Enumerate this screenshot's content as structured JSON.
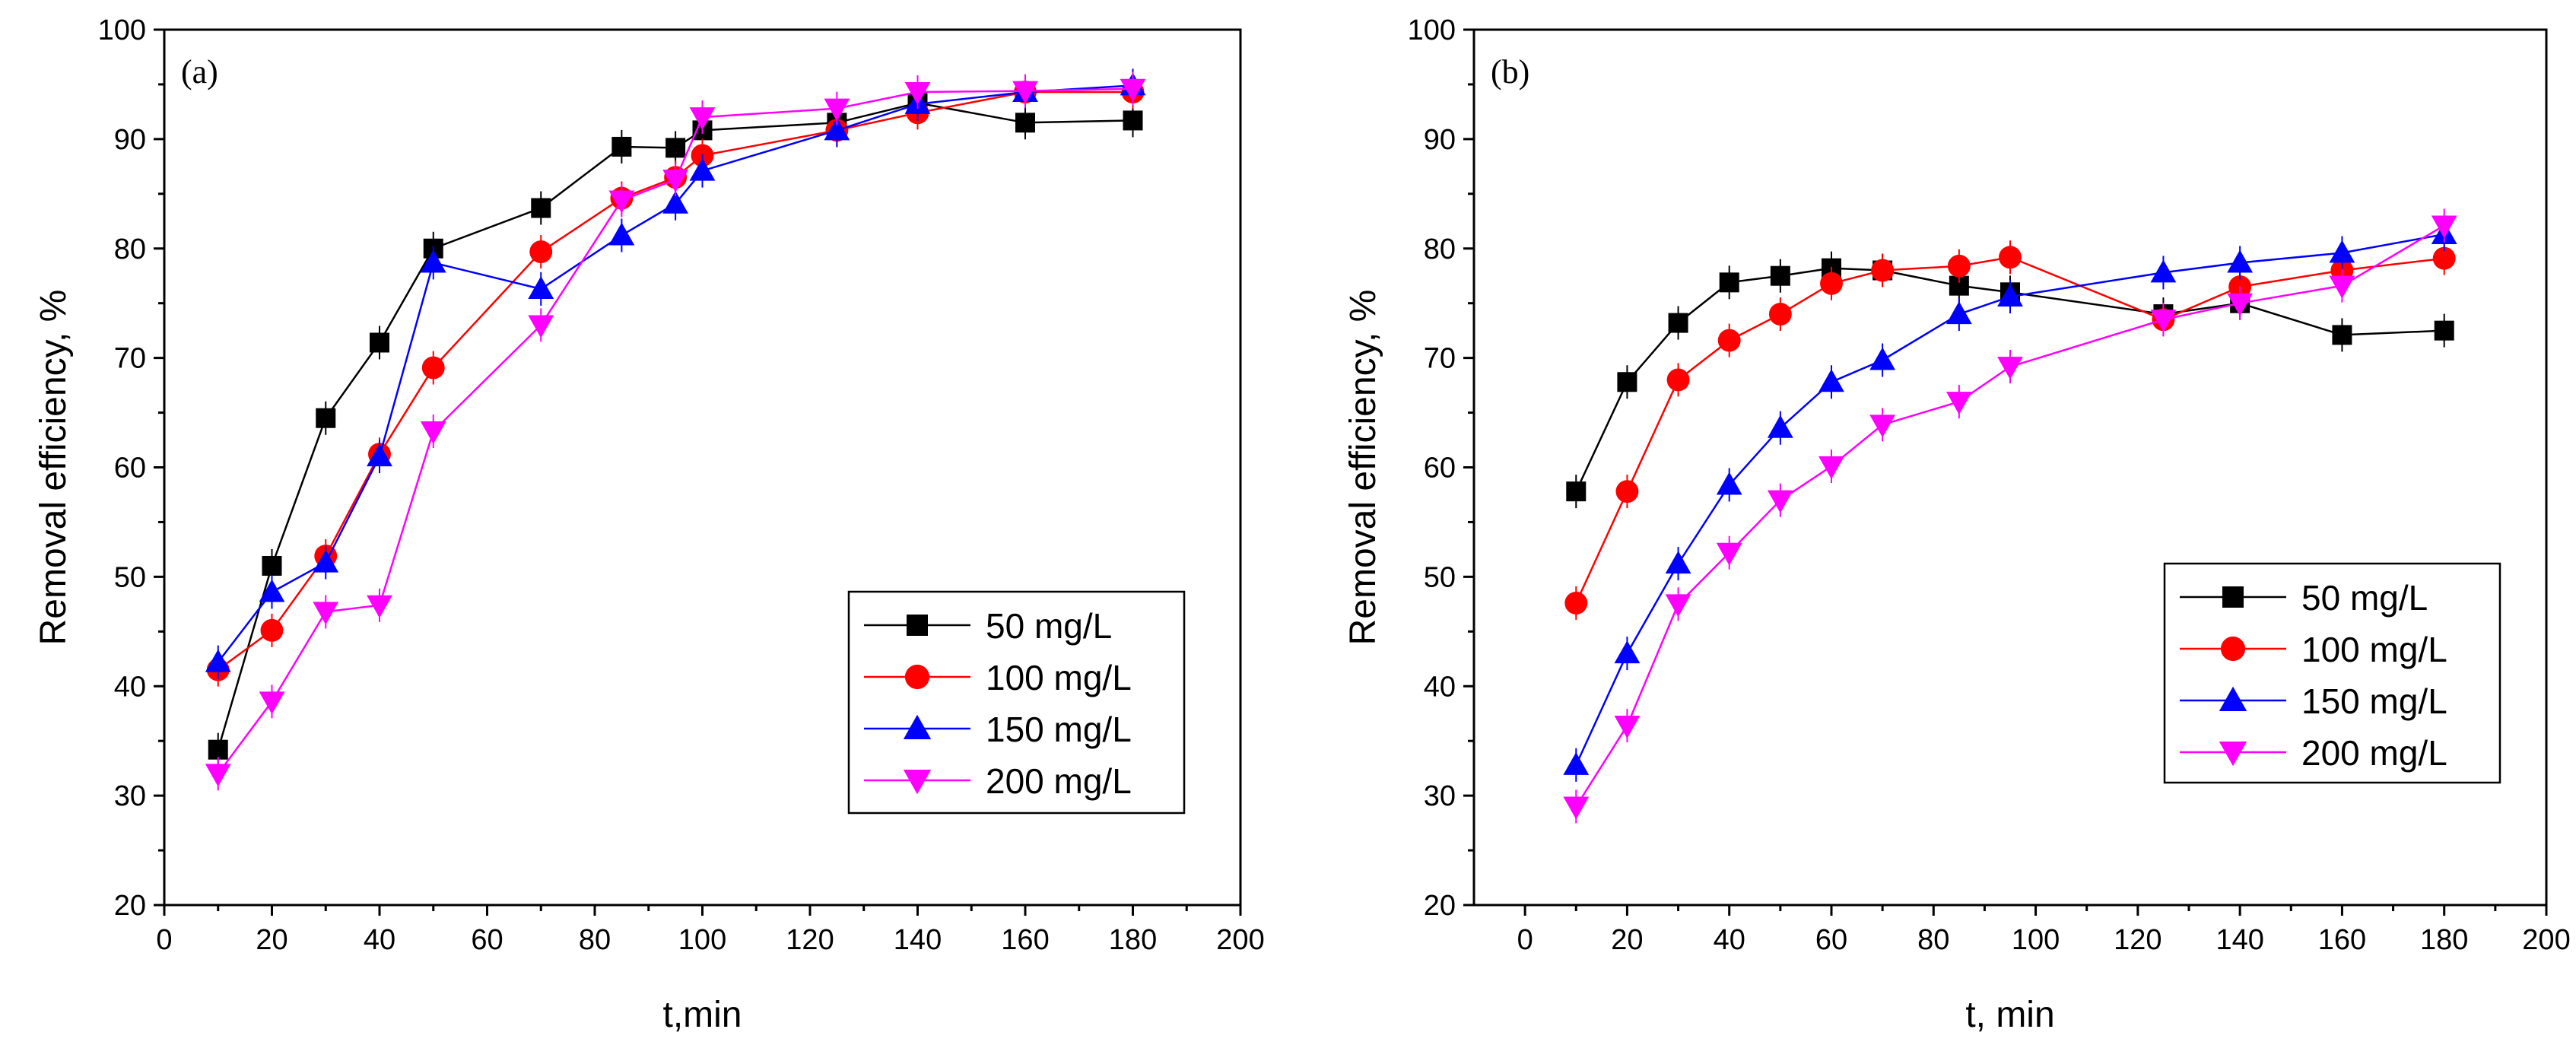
{
  "chart_data": [
    {
      "type": "line",
      "panel_label": "(a)",
      "xlabel": "t,min",
      "ylabel": "Removal efficiency, %",
      "xlim": [
        0,
        200
      ],
      "ylim": [
        20,
        100
      ],
      "xticks": [
        "0",
        "20",
        "40",
        "60",
        "80",
        "100",
        "120",
        "140",
        "160",
        "180",
        "200"
      ],
      "yticks": [
        "20",
        "30",
        "40",
        "50",
        "60",
        "70",
        "80",
        "90",
        "100"
      ],
      "legend_position": "bottom-right",
      "x": [
        10,
        20,
        30,
        40,
        50,
        70,
        85,
        95,
        100,
        125,
        140,
        160,
        180
      ],
      "series": [
        {
          "name": "50 mg/L",
          "color": "#000000",
          "marker": "square",
          "values": [
            34.2,
            51,
            64.5,
            71.4,
            80,
            83.7,
            89.3,
            89.2,
            90.8,
            91.5,
            93.3,
            91.5,
            91.7
          ]
        },
        {
          "name": "100 mg/L",
          "color": "#ff0000",
          "marker": "circle",
          "values": [
            41.5,
            45.1,
            51.9,
            61.2,
            69.1,
            79.7,
            84.6,
            86.5,
            88.5,
            90.8,
            92.4,
            94.3,
            94.3
          ]
        },
        {
          "name": "150 mg/L",
          "color": "#0000ff",
          "marker": "triangle-up",
          "values": [
            42.2,
            48.6,
            51.3,
            61,
            78.7,
            76.3,
            81.2,
            84.1,
            87.1,
            90.8,
            93.2,
            94.3,
            94.9
          ]
        },
        {
          "name": "200 mg/L",
          "color": "#ff00ff",
          "marker": "triangle-down",
          "values": [
            32,
            38.6,
            46.8,
            47.4,
            63.3,
            73,
            84.4,
            86.3,
            92,
            92.8,
            94.3,
            94.4,
            94.6
          ]
        }
      ]
    },
    {
      "type": "line",
      "panel_label": "(b)",
      "xlabel": "t, min",
      "ylabel": "Removal efficiency, %",
      "xlim": [
        -10,
        200
      ],
      "ylim": [
        20,
        100
      ],
      "xticks": [
        "0",
        "20",
        "40",
        "60",
        "80",
        "100",
        "120",
        "140",
        "160",
        "180",
        "200"
      ],
      "yticks": [
        "20",
        "30",
        "40",
        "50",
        "60",
        "70",
        "80",
        "90",
        "100"
      ],
      "legend_position": "bottom-right",
      "x": [
        10,
        20,
        30,
        40,
        50,
        60,
        70,
        85,
        95,
        125,
        140,
        160,
        180
      ],
      "series": [
        {
          "name": "50 mg/L",
          "color": "#000000",
          "marker": "square",
          "values": [
            57.8,
            67.8,
            73.2,
            76.9,
            77.5,
            78.2,
            78,
            76.6,
            76,
            74,
            75,
            72.1,
            72.5
          ]
        },
        {
          "name": "100 mg/L",
          "color": "#ff0000",
          "marker": "circle",
          "values": [
            47.6,
            57.8,
            68,
            71.6,
            74,
            76.8,
            78,
            78.4,
            79.2,
            73.5,
            76.5,
            78,
            79.1
          ]
        },
        {
          "name": "150 mg/L",
          "color": "#0000ff",
          "marker": "triangle-up",
          "values": [
            32.8,
            43,
            51.2,
            58.4,
            63.6,
            67.8,
            69.8,
            74,
            75.6,
            77.8,
            78.7,
            79.6,
            81.3
          ]
        },
        {
          "name": "200 mg/L",
          "color": "#ff00ff",
          "marker": "triangle-down",
          "values": [
            29,
            36.4,
            47.5,
            52.2,
            57,
            60.1,
            63.9,
            66,
            69.2,
            73.5,
            75,
            76.6,
            82.1
          ]
        }
      ]
    }
  ]
}
